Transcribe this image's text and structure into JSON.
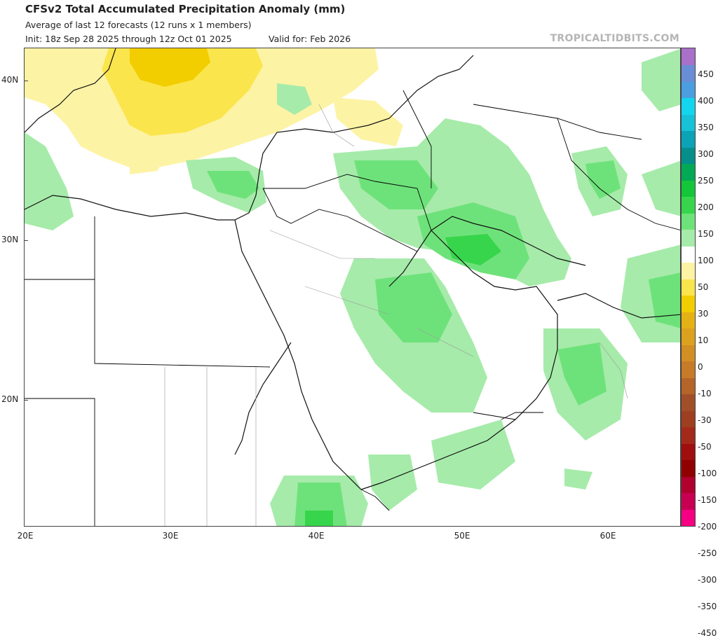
{
  "header": {
    "title": "CFSv2 Total Accumulated Precipitation Anomaly (mm)",
    "subtitle": "Average of last 12 forecasts (12 runs x 1 members)",
    "init": "Init: 18z Sep 28 2025 through 12z Oct 01 2025",
    "valid": "Valid for: Feb 2026",
    "watermark": "TROPICALTIDBITS.COM"
  },
  "map": {
    "lat_labels": [
      "40N",
      "30N",
      "20N"
    ],
    "lon_labels": [
      "20E",
      "30E",
      "40E",
      "50E",
      "60E"
    ]
  },
  "legend": {
    "ticks": [
      "450",
      "400",
      "350",
      "300",
      "250",
      "200",
      "150",
      "100",
      "50",
      "30",
      "10",
      "0",
      "-10",
      "-30",
      "-50",
      "-100",
      "-150",
      "-200",
      "-250",
      "-300",
      "-350",
      "-450"
    ],
    "colors": [
      "#f50082",
      "#c80052",
      "#b0002f",
      "#910000",
      "#a00e0e",
      "#a32a1b",
      "#9e3f22",
      "#a14f29",
      "#b5642a",
      "#c77b28",
      "#d18f24",
      "#dca21f",
      "#e5b216",
      "#f2cd00",
      "#fbe54d",
      "#fdf3a5",
      "#ffffff",
      "#a6ebaa",
      "#6ee27a",
      "#37d54c",
      "#14c63a",
      "#04a956",
      "#068f8a",
      "#0ba3b5",
      "#17c1d7",
      "#13d6ee",
      "#4b9fe0",
      "#6a8ed6",
      "#a870c9"
    ]
  }
}
